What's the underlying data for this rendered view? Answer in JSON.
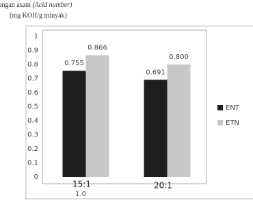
{
  "chart_data": {
    "type": "bar",
    "title": "angan asam",
    "title_italic": "(Acid number)",
    "subtitle": "(mg KOH/g minyak)",
    "categories": [
      "15:1",
      "20:1"
    ],
    "annotation": "1.0",
    "series": [
      {
        "name": "ENT",
        "color": "#1f1f1f",
        "values": [
          0.755,
          0.691
        ],
        "value_labels": [
          "0.755",
          "0.691"
        ]
      },
      {
        "name": "ETN",
        "color": "#c8c8c8",
        "values": [
          0.866,
          0.8
        ],
        "value_labels": [
          "0.866",
          "0.800"
        ]
      }
    ],
    "ylim": [
      0,
      1
    ],
    "yticks": [
      0,
      0.1,
      0.2,
      0.3,
      0.4,
      0.5,
      0.6,
      0.7,
      0.8,
      0.9,
      1
    ],
    "legend": "right"
  }
}
